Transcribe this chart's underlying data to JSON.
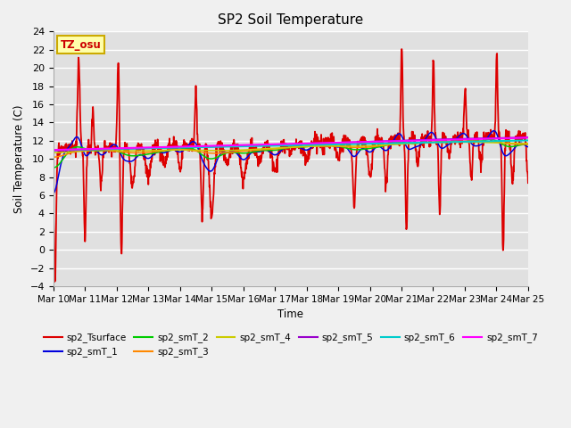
{
  "title": "SP2 Soil Temperature",
  "ylabel": "Soil Temperature (C)",
  "xlabel": "Time",
  "xlim": [
    0,
    15
  ],
  "ylim": [
    -4,
    24
  ],
  "yticks": [
    -4,
    -2,
    0,
    2,
    4,
    6,
    8,
    10,
    12,
    14,
    16,
    18,
    20,
    22,
    24
  ],
  "xtick_labels": [
    "Mar 10",
    "Mar 11",
    "Mar 12",
    "Mar 13",
    "Mar 14",
    "Mar 15",
    "Mar 16",
    "Mar 17",
    "Mar 18",
    "Mar 19",
    "Mar 20",
    "Mar 21",
    "Mar 22",
    "Mar 23",
    "Mar 24",
    "Mar 25"
  ],
  "xtick_positions": [
    0,
    1,
    2,
    3,
    4,
    5,
    6,
    7,
    8,
    9,
    10,
    11,
    12,
    13,
    14,
    15
  ],
  "bg_color": "#e0e0e0",
  "grid_color": "#ffffff",
  "fig_color": "#f0f0f0",
  "annotation_text": "TZ_osu",
  "annotation_color": "#cc0000",
  "annotation_bg": "#ffffaa",
  "annotation_border": "#ccaa00",
  "series_order": [
    "sp2_Tsurface",
    "sp2_smT_1",
    "sp2_smT_2",
    "sp2_smT_3",
    "sp2_smT_4",
    "sp2_smT_5",
    "sp2_smT_6",
    "sp2_smT_7"
  ],
  "series": {
    "sp2_Tsurface": {
      "color": "#dd0000",
      "lw": 1.3
    },
    "sp2_smT_1": {
      "color": "#0000dd",
      "lw": 1.1
    },
    "sp2_smT_2": {
      "color": "#00cc00",
      "lw": 1.1
    },
    "sp2_smT_3": {
      "color": "#ff8800",
      "lw": 1.1
    },
    "sp2_smT_4": {
      "color": "#cccc00",
      "lw": 1.1
    },
    "sp2_smT_5": {
      "color": "#9900cc",
      "lw": 1.3
    },
    "sp2_smT_6": {
      "color": "#00cccc",
      "lw": 1.5
    },
    "sp2_smT_7": {
      "color": "#ff00ff",
      "lw": 1.5
    }
  },
  "legend_ncol": 6,
  "legend_fontsize": 7.5
}
